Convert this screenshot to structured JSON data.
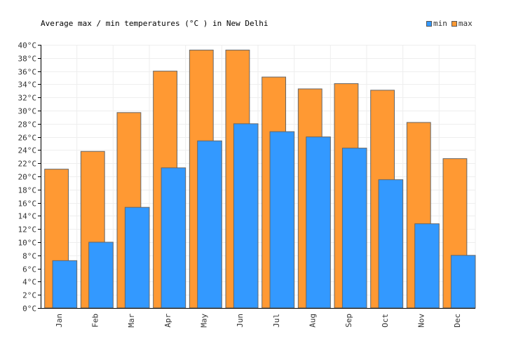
{
  "chart_data": {
    "type": "bar",
    "title": "Average max / min temperatures (°C ) in New Delhi",
    "categories": [
      "Jan",
      "Feb",
      "Mar",
      "Apr",
      "May",
      "Jun",
      "Jul",
      "Aug",
      "Sep",
      "Oct",
      "Nov",
      "Dec"
    ],
    "series": [
      {
        "name": "min",
        "values": [
          7.2,
          10.0,
          15.3,
          21.3,
          25.4,
          28.0,
          26.8,
          26.0,
          24.3,
          19.5,
          12.8,
          8.0
        ],
        "color": "#3399ff"
      },
      {
        "name": "max",
        "values": [
          21.1,
          23.8,
          29.7,
          36.0,
          39.2,
          39.2,
          35.1,
          33.3,
          34.1,
          33.1,
          28.2,
          22.7
        ],
        "color": "#ff9933"
      }
    ],
    "ylim": [
      0,
      40
    ],
    "ytick_step": 2,
    "ytick_suffix": "°C",
    "grid": true,
    "legend": "top-right"
  }
}
